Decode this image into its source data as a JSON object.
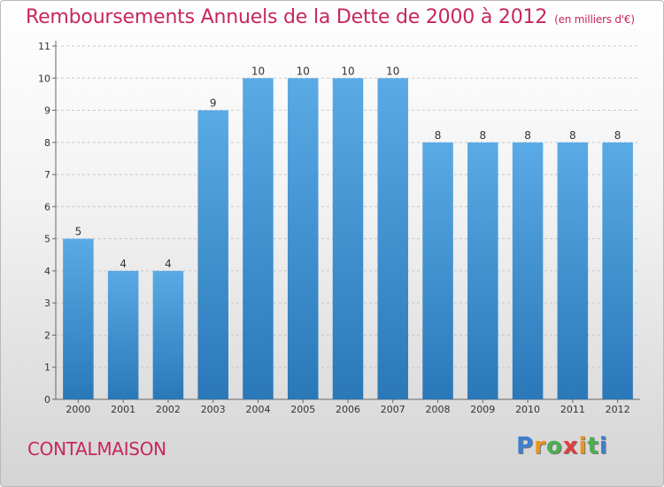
{
  "title": "Remboursements Annuels de la Dette de 2000 à 2012",
  "unit": "(en milliers d'€)",
  "commune": "CONTALMAISON",
  "logo": {
    "letters": [
      "P",
      "r",
      "o",
      "x",
      "i",
      "t",
      "i"
    ],
    "colors": [
      "#3d7fd0",
      "#e8961e",
      "#4caf50",
      "#e04040",
      "#e8961e",
      "#4caf50",
      "#3d7fd0"
    ]
  },
  "colors": {
    "bar_light": "#5aaae6",
    "bar_dark": "#2a78b8",
    "grid": "#c8c8c8",
    "accent": "#c8265c"
  },
  "chart_data": {
    "type": "bar",
    "categories": [
      "2000",
      "2001",
      "2002",
      "2003",
      "2004",
      "2005",
      "2006",
      "2007",
      "2008",
      "2009",
      "2010",
      "2011",
      "2012"
    ],
    "values": [
      5,
      4,
      4,
      9,
      10,
      10,
      10,
      10,
      8,
      8,
      8,
      8,
      8
    ],
    "data_labels": [
      "5",
      "4",
      "4",
      "9",
      "10",
      "10",
      "10",
      "10",
      "8",
      "8",
      "8",
      "8",
      "8"
    ],
    "y_ticks": [
      "0",
      "1",
      "2",
      "3",
      "4",
      "5",
      "6",
      "7",
      "8",
      "9",
      "10",
      "11"
    ],
    "ylim": [
      0,
      11
    ],
    "grid": true,
    "legend": "none"
  }
}
